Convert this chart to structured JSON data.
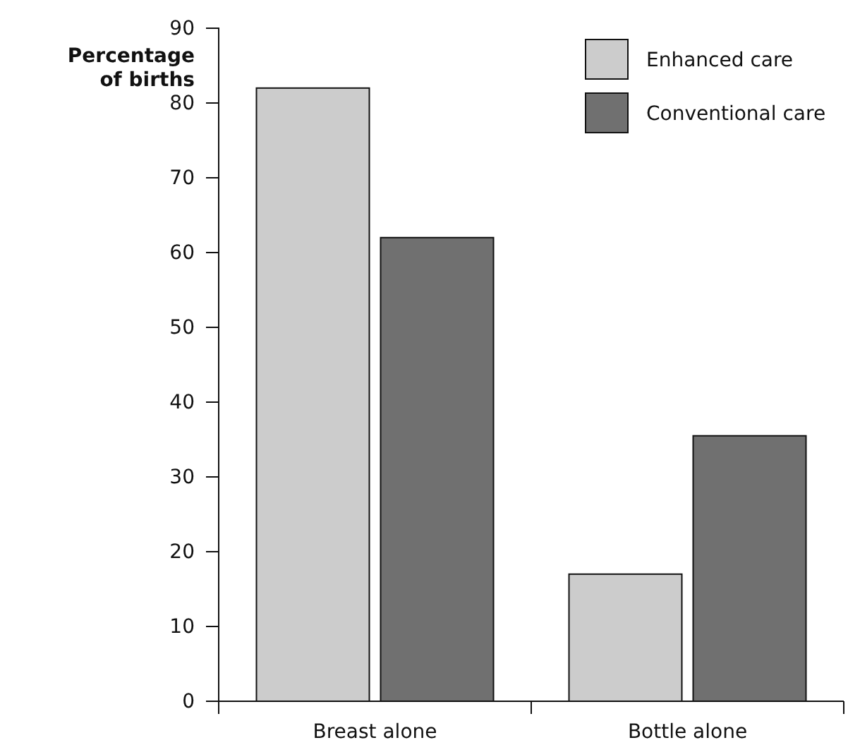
{
  "chart_data": {
    "type": "bar",
    "ylabel": "Percentage of births",
    "categories": [
      "Breast alone",
      "Bottle alone"
    ],
    "series": [
      {
        "name": "Enhanced care",
        "color": "#cccccc",
        "values": [
          82,
          17
        ]
      },
      {
        "name": "Conventional care",
        "color": "#707070",
        "values": [
          62,
          35.5
        ]
      }
    ],
    "ylim": [
      0,
      90
    ],
    "yticks": [
      0,
      10,
      20,
      30,
      40,
      50,
      60,
      70,
      80,
      90
    ],
    "legend": "top right"
  }
}
